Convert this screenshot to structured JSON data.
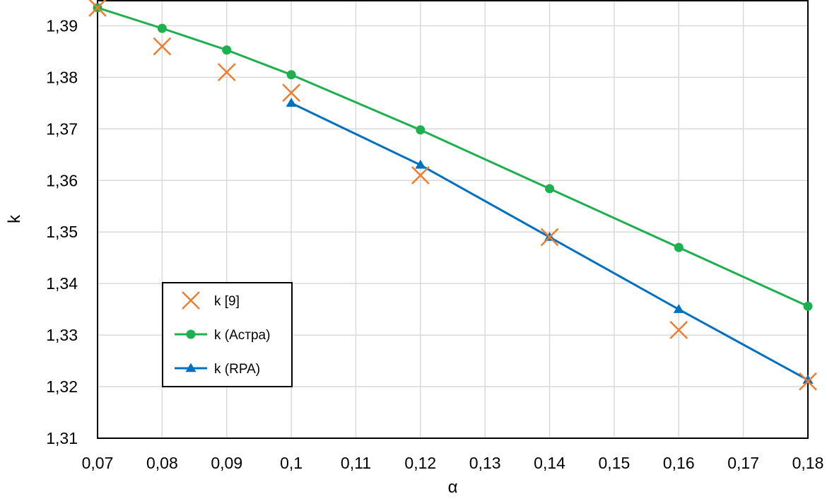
{
  "chart_data": {
    "type": "line",
    "title": "",
    "xlabel": "α",
    "ylabel": "k",
    "xlim": [
      0.07,
      0.18
    ],
    "ylim": [
      1.31,
      1.395
    ],
    "grid": true,
    "legend_position": "lower-left",
    "x_ticks": [
      "0,07",
      "0,08",
      "0,09",
      "0,1",
      "0,11",
      "0,12",
      "0,13",
      "0,14",
      "0,15",
      "0,16",
      "0,17",
      "0,18"
    ],
    "y_ticks": [
      "1,31",
      "1,32",
      "1,33",
      "1,34",
      "1,35",
      "1,36",
      "1,37",
      "1,38",
      "1,39"
    ],
    "x_tick_values": [
      0.07,
      0.08,
      0.09,
      0.1,
      0.11,
      0.12,
      0.13,
      0.14,
      0.15,
      0.16,
      0.17,
      0.18
    ],
    "y_tick_values": [
      1.31,
      1.32,
      1.33,
      1.34,
      1.35,
      1.36,
      1.37,
      1.38,
      1.39
    ],
    "series": [
      {
        "name": "k [9]",
        "style": "markers",
        "marker": "x",
        "color": "#ED7D31",
        "x": [
          0.07,
          0.08,
          0.09,
          0.1,
          0.12,
          0.14,
          0.16,
          0.18
        ],
        "y": [
          1.3935,
          1.386,
          1.381,
          1.377,
          1.361,
          1.349,
          1.331,
          1.321
        ]
      },
      {
        "name": "k (Астра)",
        "style": "line",
        "marker": "circle",
        "color": "#1DB04E",
        "x": [
          0.07,
          0.08,
          0.09,
          0.1,
          0.12,
          0.14,
          0.16,
          0.18
        ],
        "y": [
          1.3935,
          1.3895,
          1.3853,
          1.3805,
          1.3698,
          1.3584,
          1.347,
          1.3356
        ]
      },
      {
        "name": "k (RPA)",
        "style": "line",
        "marker": "triangle",
        "color": "#0070C0",
        "x": [
          0.1,
          0.12,
          0.14,
          0.16,
          0.18
        ],
        "y": [
          1.375,
          1.363,
          1.349,
          1.335,
          1.3213
        ]
      }
    ]
  }
}
